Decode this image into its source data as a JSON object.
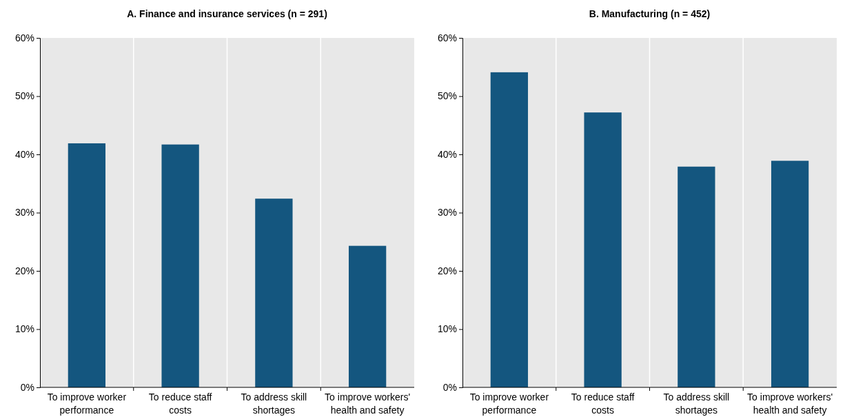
{
  "chart_data": [
    {
      "type": "bar",
      "title": "A. Finance and insurance services (n = 291)",
      "categories": [
        "To improve worker performance",
        "To reduce staff costs",
        "To address skill shortages",
        "To improve workers' health and safety"
      ],
      "values": [
        41.9,
        41.7,
        32.4,
        24.3
      ],
      "color": "#14567f",
      "ylim": [
        0,
        60
      ],
      "yticks": [
        {
          "value": 0,
          "label": "0%"
        },
        {
          "value": 10,
          "label": "10%"
        },
        {
          "value": 20,
          "label": "20%"
        },
        {
          "value": 30,
          "label": "30%"
        },
        {
          "value": 40,
          "label": "40%"
        },
        {
          "value": 50,
          "label": "50%"
        },
        {
          "value": 60,
          "label": "60%"
        }
      ],
      "grid": "x"
    },
    {
      "type": "bar",
      "title": "B. Manufacturing (n = 452)",
      "categories": [
        "To improve worker performance",
        "To reduce staff costs",
        "To address skill shortages",
        "To improve workers' health and safety"
      ],
      "values": [
        54.1,
        47.2,
        37.9,
        38.9
      ],
      "color": "#14567f",
      "ylim": [
        0,
        60
      ],
      "yticks": [
        {
          "value": 0,
          "label": "0%"
        },
        {
          "value": 10,
          "label": "10%"
        },
        {
          "value": 20,
          "label": "20%"
        },
        {
          "value": 30,
          "label": "30%"
        },
        {
          "value": 40,
          "label": "40%"
        },
        {
          "value": 50,
          "label": "50%"
        },
        {
          "value": 60,
          "label": "60%"
        }
      ],
      "grid": "x"
    }
  ]
}
